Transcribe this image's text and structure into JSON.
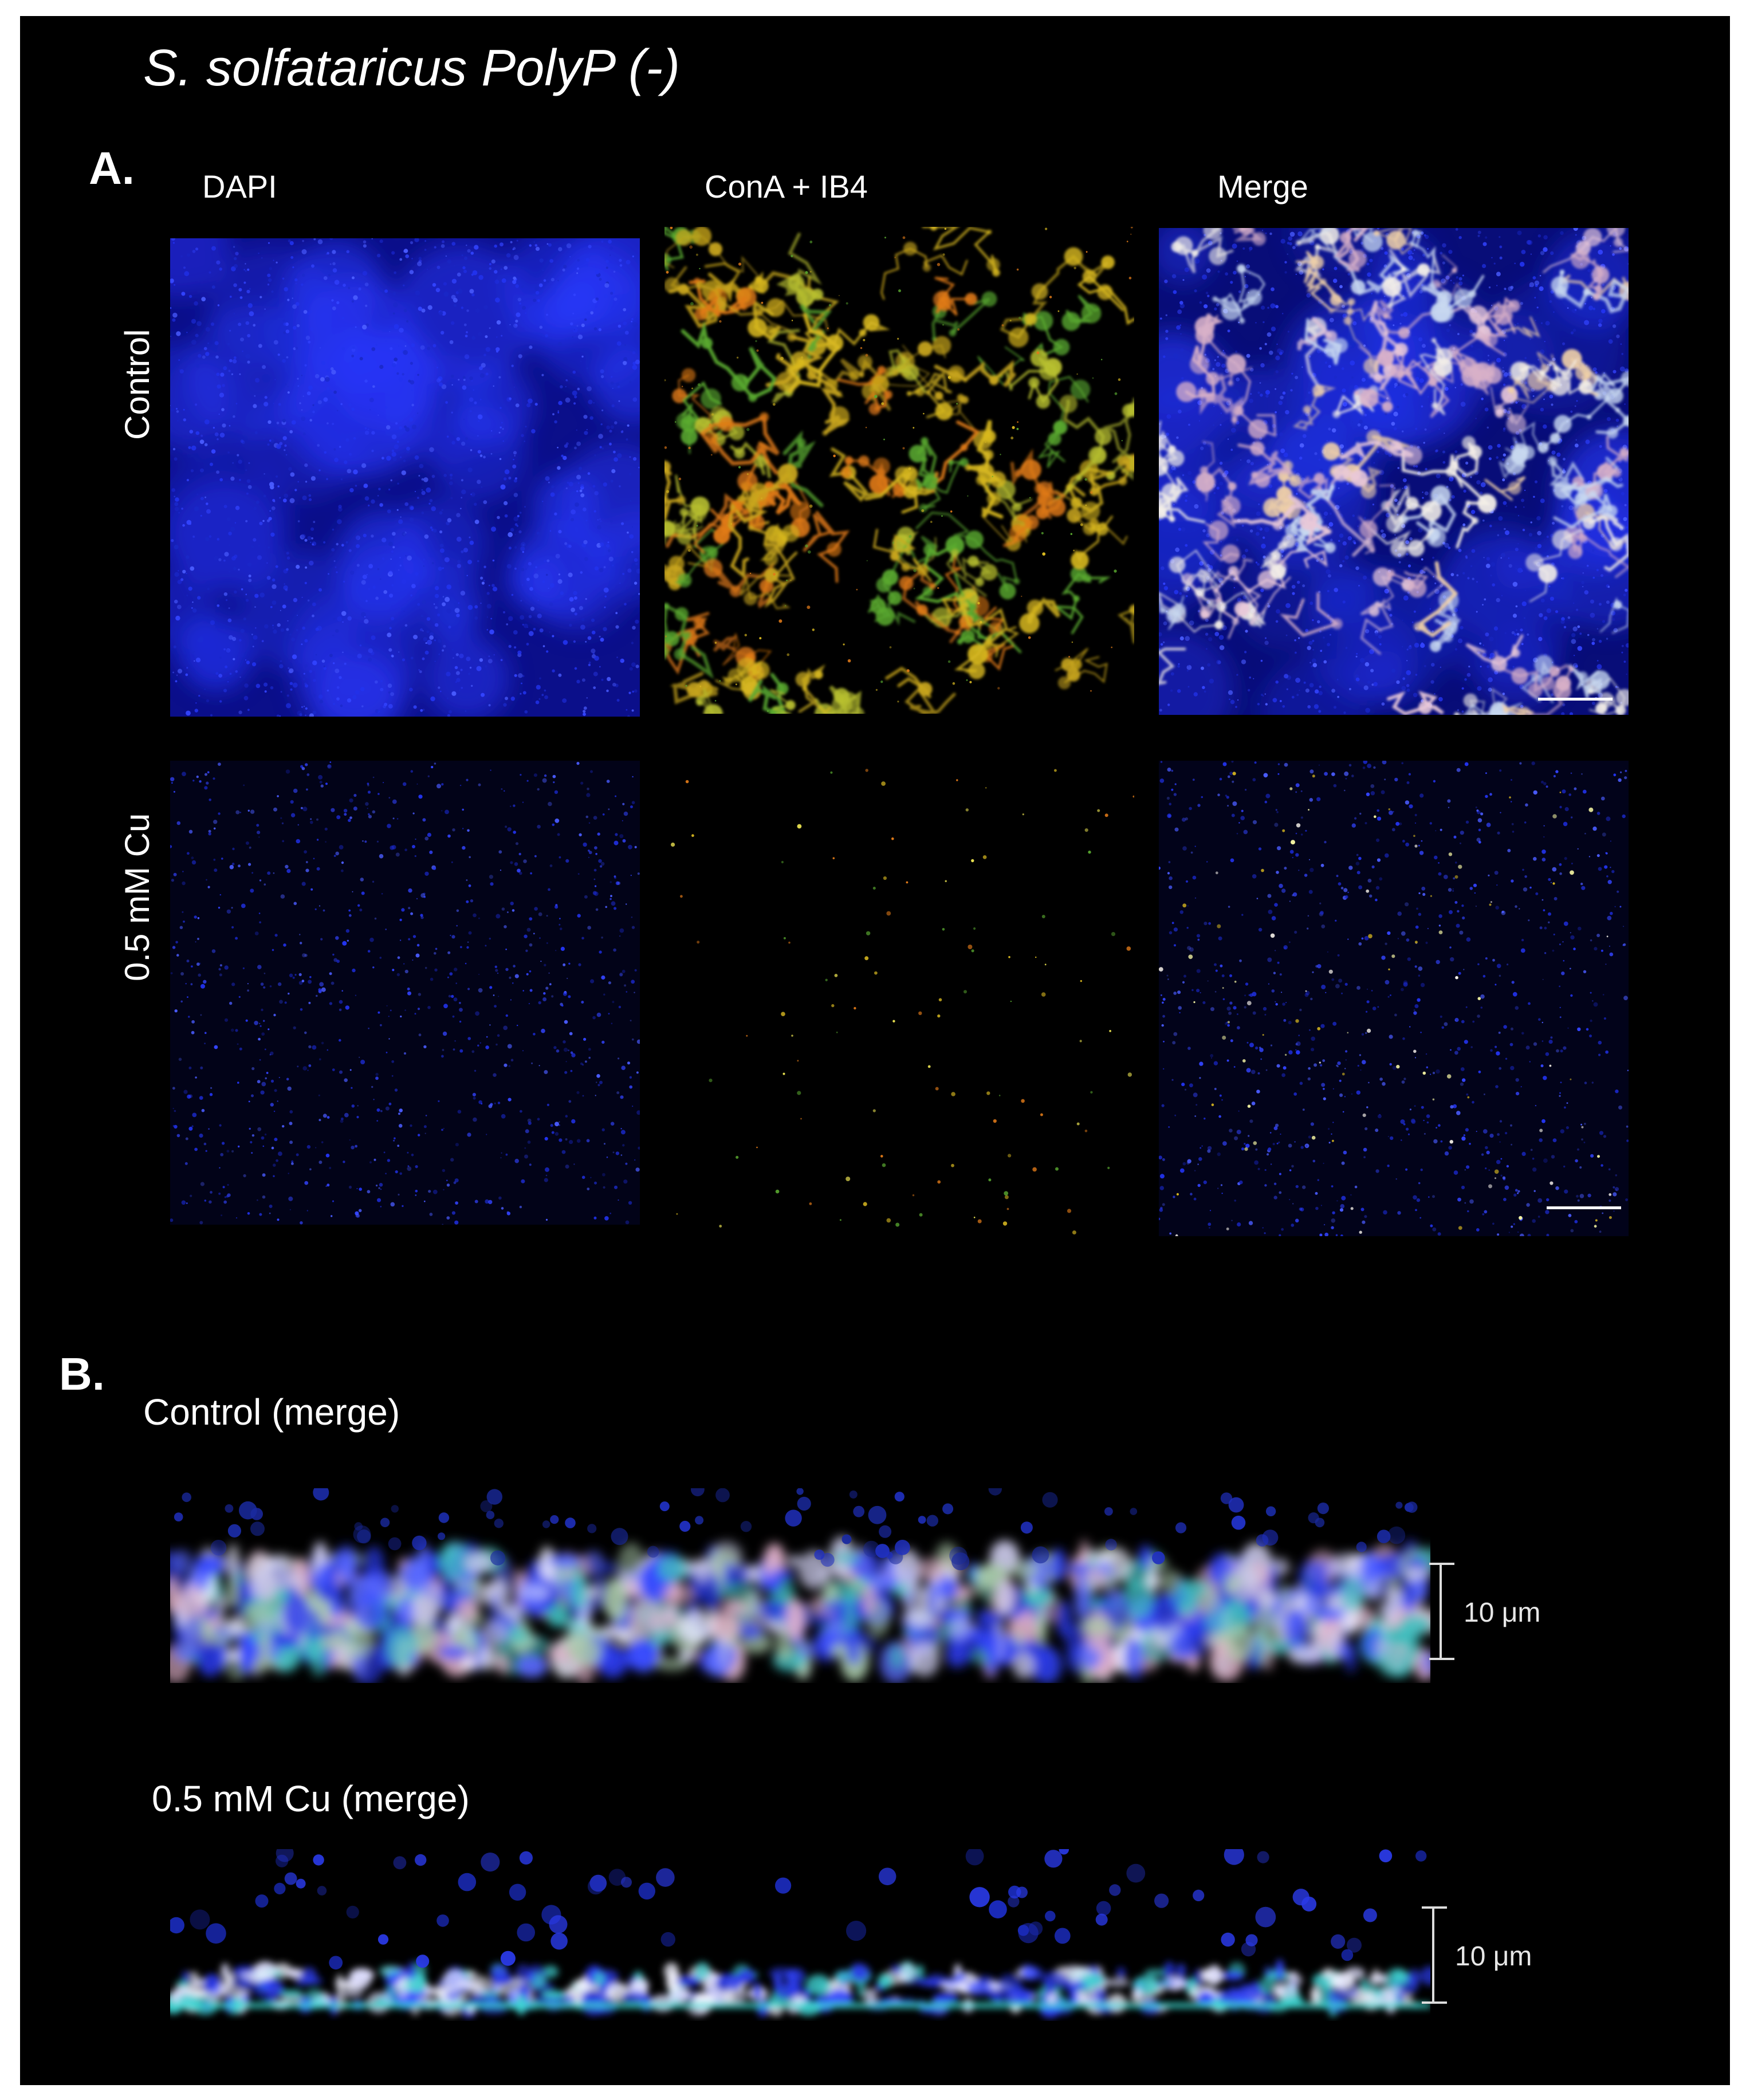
{
  "figure": {
    "title": "S. solfataricus PolyP (-)",
    "panel_a": {
      "label": "A.",
      "columns": [
        "DAPI",
        "ConA + IB4",
        "Merge"
      ],
      "rows": [
        "Control",
        "0.5 mM Cu"
      ]
    },
    "panel_b": {
      "label": "B.",
      "sections": [
        {
          "title": "Control (merge)",
          "scale_label": "10 μm"
        },
        {
          "title": "0.5 mM Cu (merge)",
          "scale_label": "10 μm"
        }
      ]
    }
  },
  "colors": {
    "background": "#000000",
    "dapi_blue": "#2233ee",
    "cona_yellow": "#d8b820",
    "ib4_orange": "#e07a18",
    "green": "#5aaa30",
    "white_overlap": "#f4f0e8",
    "label_text": "#ffffff"
  },
  "images": [
    {
      "name": "dapi-control-image",
      "depicts": "blue DAPI-stained cell field, dense"
    },
    {
      "name": "cona-ib4-control-image",
      "depicts": "yellow-orange branching ConA + IB4 signal network"
    },
    {
      "name": "merge-control-image",
      "depicts": "blue cells with pale pink-white branching network overlay"
    },
    {
      "name": "dapi-cu-image",
      "depicts": "sparse blue DAPI-stained cells"
    },
    {
      "name": "cona-ib4-cu-image",
      "depicts": "sparse yellow-green puncta on black"
    },
    {
      "name": "merge-cu-image",
      "depicts": "blue cells with sparse yellow-white puncta"
    },
    {
      "name": "control-zstack-image",
      "depicts": "thick blue-white mixed orthogonal biofilm section"
    },
    {
      "name": "cu-zstack-image",
      "depicts": "thin blue layer with white-cyan base orthogonal section"
    }
  ]
}
